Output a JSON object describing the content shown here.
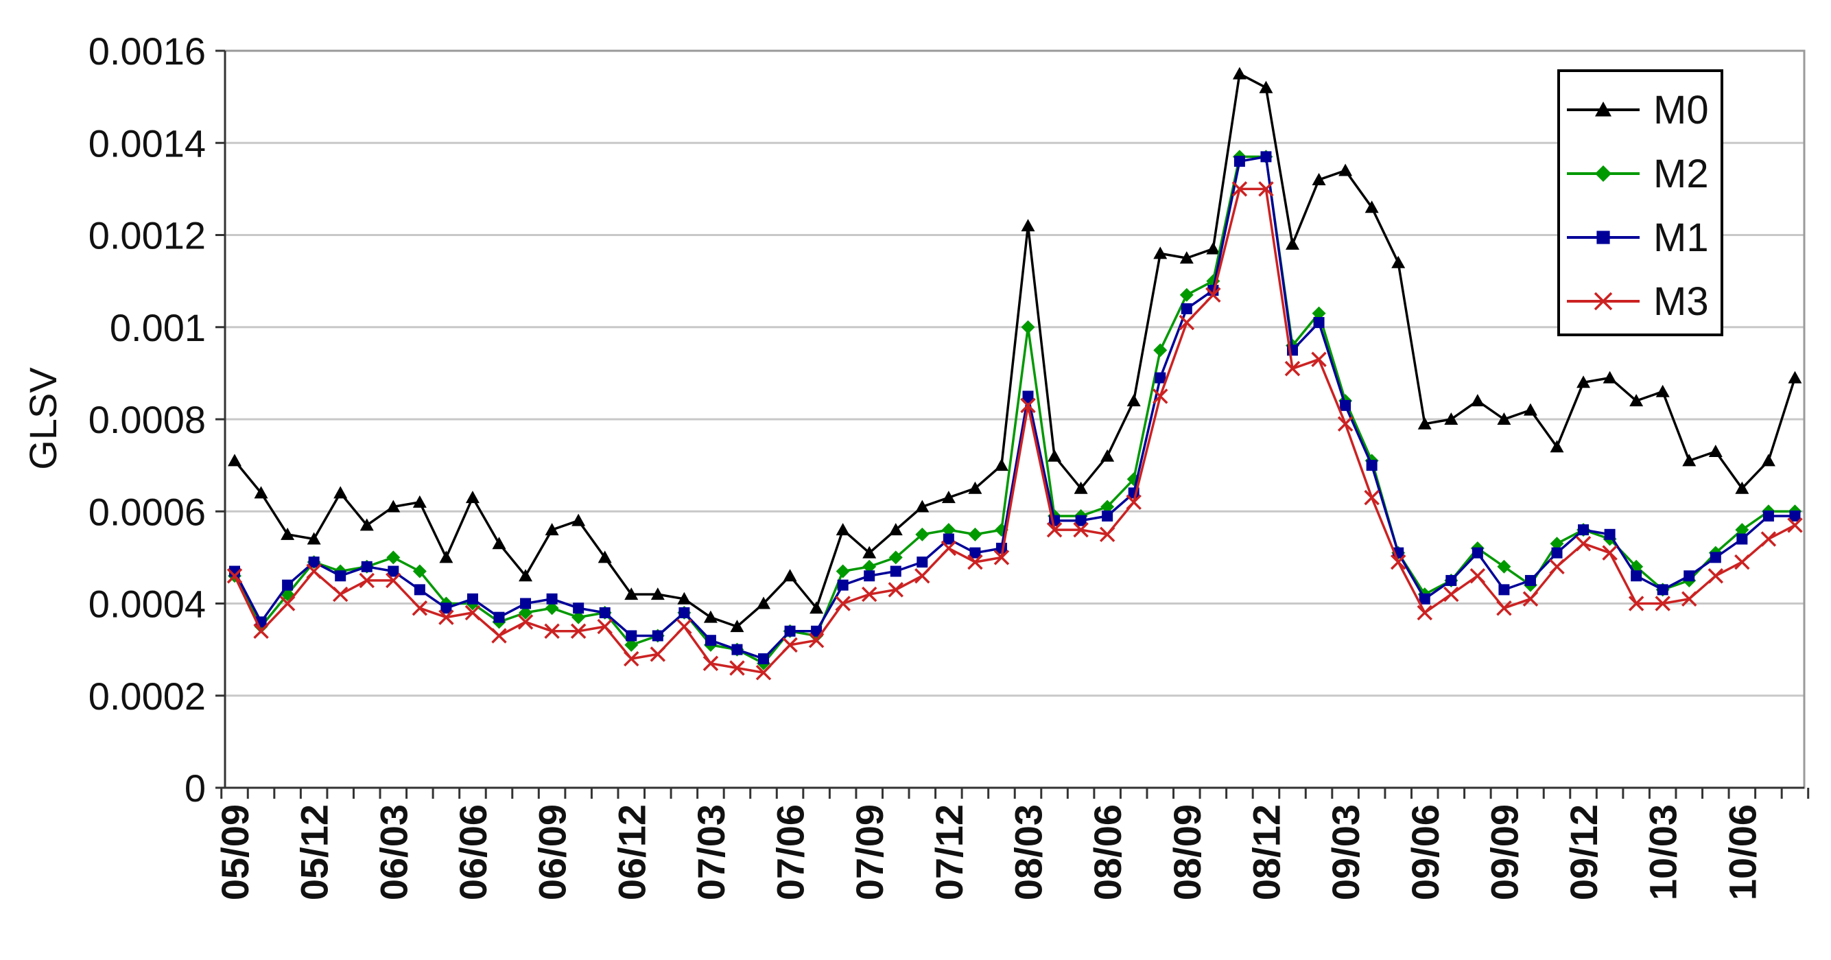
{
  "chart_data": {
    "type": "line",
    "ylabel": "GLSV",
    "xlabel": "",
    "ylim": [
      0,
      0.0016
    ],
    "yticks": [
      "0",
      "0.0002",
      "0.0004",
      "0.0006",
      "0.0008",
      "0.001",
      "0.0012",
      "0.0014",
      "0.0016"
    ],
    "ytick_values": [
      0,
      0.0002,
      0.0004,
      0.0006,
      0.0008,
      0.001,
      0.0012,
      0.0014,
      0.0016
    ],
    "x": [
      "05/09",
      "05/10",
      "05/11",
      "05/12",
      "06/01",
      "06/02",
      "06/03",
      "06/04",
      "06/05",
      "06/06",
      "06/07",
      "06/08",
      "06/09",
      "06/10",
      "06/11",
      "06/12",
      "07/01",
      "07/02",
      "07/03",
      "07/04",
      "07/05",
      "07/06",
      "07/07",
      "07/08",
      "07/09",
      "07/10",
      "07/11",
      "07/12",
      "08/01",
      "08/02",
      "08/03",
      "08/04",
      "08/05",
      "08/06",
      "08/07",
      "08/08",
      "08/09",
      "08/10",
      "08/11",
      "08/12",
      "09/01",
      "09/02",
      "09/03",
      "09/04",
      "09/05",
      "09/06",
      "09/07",
      "09/08",
      "09/09",
      "09/10",
      "09/11",
      "09/12",
      "10/01",
      "10/02",
      "10/03",
      "10/04",
      "10/05",
      "10/06",
      "10/07",
      "10/08"
    ],
    "xtick_labels": [
      "05/09",
      "05/12",
      "06/03",
      "06/06",
      "06/09",
      "06/12",
      "07/03",
      "07/06",
      "07/09",
      "07/12",
      "08/03",
      "08/06",
      "08/09",
      "08/12",
      "09/03",
      "09/06",
      "09/09",
      "09/12",
      "10/03",
      "10/06"
    ],
    "grid": true,
    "legend_position": "top-right",
    "series": [
      {
        "name": "M0",
        "color": "#000000",
        "marker": "triangle",
        "values": [
          0.00071,
          0.00064,
          0.00055,
          0.00054,
          0.00064,
          0.00057,
          0.00061,
          0.00062,
          0.0005,
          0.00063,
          0.00053,
          0.00046,
          0.00056,
          0.00058,
          0.0005,
          0.00042,
          0.00042,
          0.00041,
          0.00037,
          0.00035,
          0.0004,
          0.00046,
          0.00039,
          0.00056,
          0.00051,
          0.00056,
          0.00061,
          0.00063,
          0.00065,
          0.0007,
          0.00122,
          0.00072,
          0.00065,
          0.00072,
          0.00084,
          0.00116,
          0.00115,
          0.00117,
          0.00155,
          0.00152,
          0.00118,
          0.00132,
          0.00134,
          0.00126,
          0.00114,
          0.00079,
          0.0008,
          0.00084,
          0.0008,
          0.00082,
          0.00074,
          0.00088,
          0.00089,
          0.00084,
          0.00086,
          0.00071,
          0.00073,
          0.00065,
          0.00071,
          0.00089
        ]
      },
      {
        "name": "M2",
        "color": "#009900",
        "marker": "diamond",
        "values": [
          0.00046,
          0.00035,
          0.00042,
          0.00049,
          0.00047,
          0.00048,
          0.0005,
          0.00047,
          0.0004,
          0.0004,
          0.00036,
          0.00038,
          0.00039,
          0.00037,
          0.00038,
          0.00031,
          0.00033,
          0.00038,
          0.00031,
          0.0003,
          0.00027,
          0.00034,
          0.00033,
          0.00047,
          0.00048,
          0.0005,
          0.00055,
          0.00056,
          0.00055,
          0.00056,
          0.001,
          0.00059,
          0.00059,
          0.00061,
          0.00067,
          0.00095,
          0.00107,
          0.0011,
          0.00137,
          0.00137,
          0.00096,
          0.00103,
          0.00084,
          0.00071,
          0.00051,
          0.00042,
          0.00045,
          0.00052,
          0.00048,
          0.00044,
          0.00053,
          0.00056,
          0.00054,
          0.00048,
          0.00043,
          0.00045,
          0.00051,
          0.00056,
          0.0006,
          0.0006
        ]
      },
      {
        "name": "M1",
        "color": "#000099",
        "marker": "square",
        "values": [
          0.00047,
          0.00036,
          0.00044,
          0.00049,
          0.00046,
          0.00048,
          0.00047,
          0.00043,
          0.00039,
          0.00041,
          0.00037,
          0.0004,
          0.00041,
          0.00039,
          0.00038,
          0.00033,
          0.00033,
          0.00038,
          0.00032,
          0.0003,
          0.00028,
          0.00034,
          0.00034,
          0.00044,
          0.00046,
          0.00047,
          0.00049,
          0.00054,
          0.00051,
          0.00052,
          0.00085,
          0.00058,
          0.00058,
          0.00059,
          0.00064,
          0.00089,
          0.00104,
          0.00108,
          0.00136,
          0.00137,
          0.00095,
          0.00101,
          0.00083,
          0.0007,
          0.00051,
          0.00041,
          0.00045,
          0.00051,
          0.00043,
          0.00045,
          0.00051,
          0.00056,
          0.00055,
          0.00046,
          0.00043,
          0.00046,
          0.0005,
          0.00054,
          0.00059,
          0.00059
        ]
      },
      {
        "name": "M3",
        "color": "#cc2222",
        "marker": "x",
        "values": [
          0.00046,
          0.00034,
          0.0004,
          0.00047,
          0.00042,
          0.00045,
          0.00045,
          0.00039,
          0.00037,
          0.00038,
          0.00033,
          0.00036,
          0.00034,
          0.00034,
          0.00035,
          0.00028,
          0.00029,
          0.00035,
          0.00027,
          0.00026,
          0.00025,
          0.00031,
          0.00032,
          0.0004,
          0.00042,
          0.00043,
          0.00046,
          0.00052,
          0.00049,
          0.0005,
          0.00083,
          0.00056,
          0.00056,
          0.00055,
          0.00062,
          0.00085,
          0.00101,
          0.00107,
          0.0013,
          0.0013,
          0.00091,
          0.00093,
          0.00079,
          0.00063,
          0.00049,
          0.00038,
          0.00042,
          0.00046,
          0.00039,
          0.00041,
          0.00048,
          0.00053,
          0.00051,
          0.0004,
          0.0004,
          0.00041,
          0.00046,
          0.00049,
          0.00054,
          0.00057
        ]
      }
    ]
  }
}
